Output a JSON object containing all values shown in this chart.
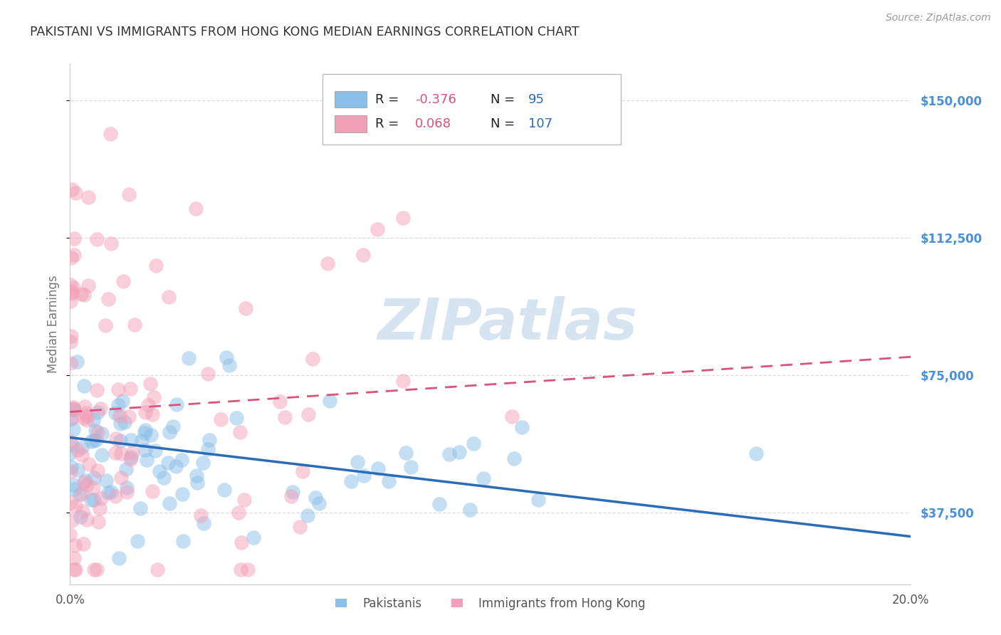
{
  "title": "PAKISTANI VS IMMIGRANTS FROM HONG KONG MEDIAN EARNINGS CORRELATION CHART",
  "source": "Source: ZipAtlas.com",
  "ylabel": "Median Earnings",
  "yticks": [
    37500,
    75000,
    112500,
    150000
  ],
  "ytick_labels": [
    "$37,500",
    "$75,000",
    "$112,500",
    "$150,000"
  ],
  "xmin": 0.0,
  "xmax": 0.2,
  "ymin": 18000,
  "ymax": 160000,
  "blue_R": -0.376,
  "blue_N": 95,
  "pink_R": 0.068,
  "pink_N": 107,
  "blue_color": "#8BBFE8",
  "pink_color": "#F2A0B8",
  "blue_line_color": "#2B6CB8",
  "pink_line_color": "#D9547A",
  "legend_R_color": "#D9547A",
  "legend_N_color": "#2B6CB8",
  "watermark": "ZIPatlas",
  "watermark_color": "#C5D8EC",
  "background_color": "#FFFFFF",
  "grid_color": "#DDDDDD",
  "title_color": "#333333",
  "axis_label_color": "#777777",
  "right_ytick_color": "#4A90D9",
  "blue_line_y0": 58000,
  "blue_line_y1": 31000,
  "pink_line_y0": 65000,
  "pink_line_y1": 80000,
  "seed_blue": 7,
  "seed_pink": 15
}
